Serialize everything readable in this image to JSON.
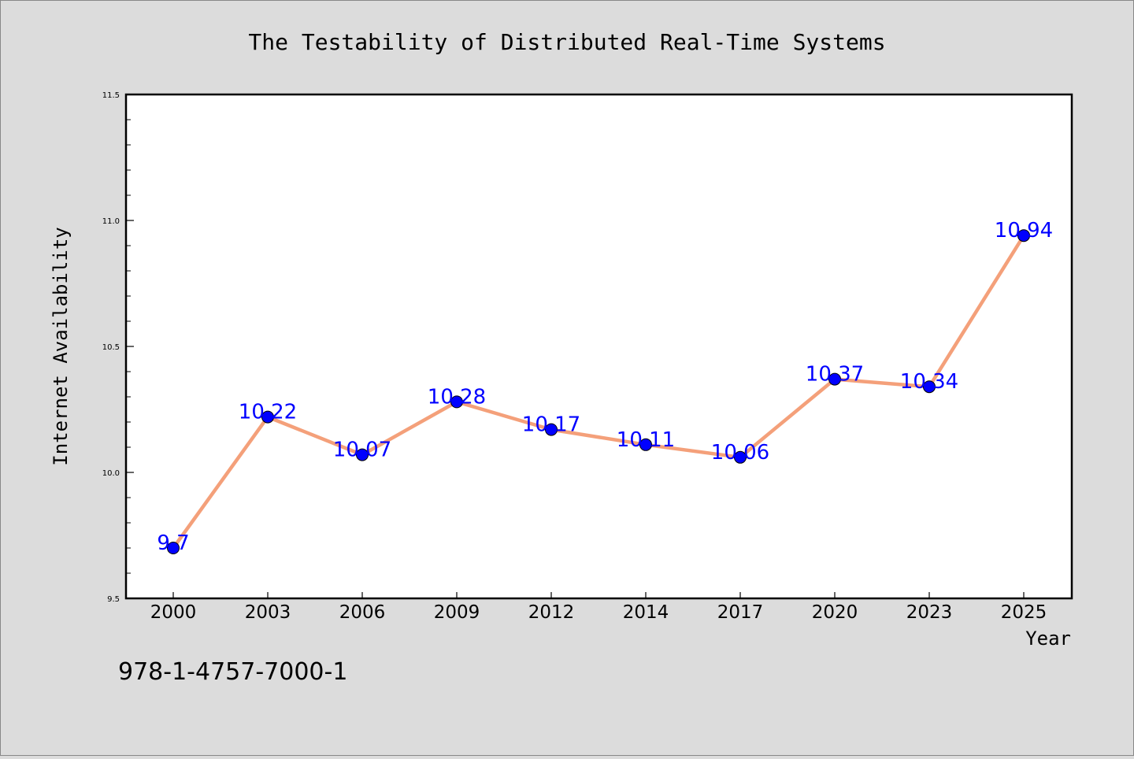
{
  "chart_data": {
    "type": "line",
    "title": "The Testability of Distributed Real-Time Systems",
    "xlabel": "Year",
    "ylabel": "Internet Availability",
    "categories": [
      "2000",
      "2003",
      "2006",
      "2009",
      "2012",
      "2014",
      "2017",
      "2020",
      "2023",
      "2025"
    ],
    "series": [
      {
        "values": [
          9.7,
          10.22,
          10.07,
          10.28,
          10.17,
          10.11,
          10.06,
          10.37,
          10.34,
          10.94
        ]
      }
    ],
    "data_labels": [
      "9.7",
      "10.22",
      "10.07",
      "10.28",
      "10.17",
      "10.11",
      "10.06",
      "10.37",
      "10.34",
      "10.94"
    ],
    "ylim": [
      9.5,
      11.5
    ],
    "yticks": [
      "9.5",
      "10.0",
      "10.5",
      "11.0",
      "11.5"
    ],
    "grid": false,
    "legend": "none",
    "line_color": "#f4a07a",
    "marker_color": "#0000ff",
    "label_color": "#0000ff",
    "footnote": "978-1-4757-7000-1"
  }
}
